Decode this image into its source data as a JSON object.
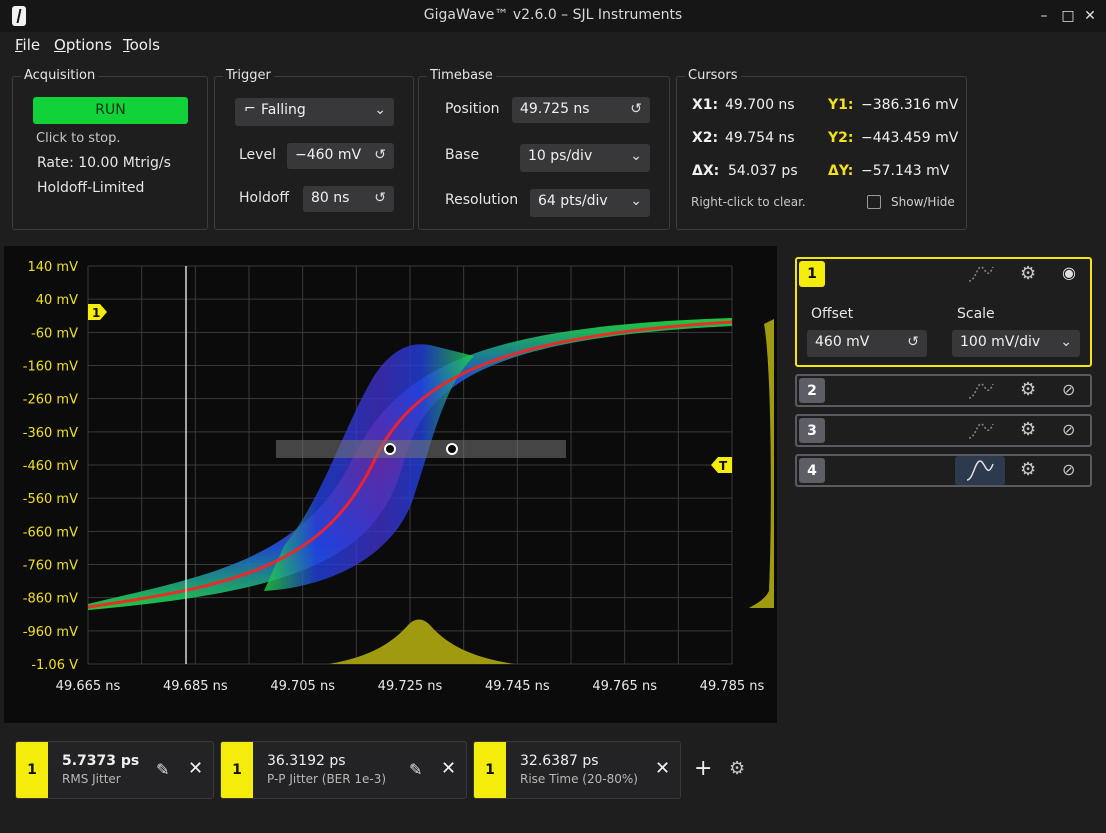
{
  "window": {
    "title": "GigaWave™ v2.6.0 – SJL Instruments",
    "minimize": "–",
    "maximize": "□",
    "close": "✕"
  },
  "menu": [
    {
      "label_u": "F",
      "label_rest": "ile"
    },
    {
      "label_u": "O",
      "label_rest": "ptions"
    },
    {
      "label_u": "T",
      "label_rest": "ools"
    }
  ],
  "acquisition": {
    "title": "Acquisition",
    "run_label": "RUN",
    "hint": "Click to stop.",
    "rate": "Rate: 10.00 Mtrig/s",
    "mode": "Holdoff-Limited"
  },
  "trigger": {
    "title": "Trigger",
    "edge": "Falling",
    "level_label": "Level",
    "level_value": "−460 mV",
    "holdoff_label": "Holdoff",
    "holdoff_value": "80 ns"
  },
  "timebase": {
    "title": "Timebase",
    "position_label": "Position",
    "position_value": "49.725 ns",
    "base_label": "Base",
    "base_value": "10 ps/div",
    "resolution_label": "Resolution",
    "resolution_value": "64 pts/div"
  },
  "cursors": {
    "title": "Cursors",
    "x1_label": "X1:",
    "x1": "49.700 ns",
    "x2_label": "X2:",
    "x2": "49.754 ns",
    "dx_label": "ΔX:",
    "dx": "54.037 ps",
    "y1_label": "Y1:",
    "y1": "−386.316 mV",
    "y2_label": "Y2:",
    "y2": "−443.459 mV",
    "dy_label": "ΔY:",
    "dy": "−57.143 mV",
    "hint": "Right-click to clear.",
    "show_hide": "Show/Hide"
  },
  "plot": {
    "y_ticks": [
      "140 mV",
      "40 mV",
      "-60 mV",
      "-160 mV",
      "-260 mV",
      "-360 mV",
      "-460 mV",
      "-560 mV",
      "-660 mV",
      "-760 mV",
      "-860 mV",
      "-960 mV",
      "-1.06 V"
    ],
    "x_ticks": [
      "49.665 ns",
      "49.685 ns",
      "49.705 ns",
      "49.725 ns",
      "49.745 ns",
      "49.765 ns",
      "49.785 ns"
    ],
    "channel_marker": "1",
    "trigger_marker": "T",
    "colors": {
      "grid": "#3a3a3a",
      "tick_text": "#f0e020",
      "axis_text": "#e8e8e8",
      "histogram": "#a09a10"
    }
  },
  "channels": [
    {
      "num": "1",
      "active": true,
      "offset_label": "Offset",
      "offset_value": "460 mV",
      "scale_label": "Scale",
      "scale_value": "100 mV/div",
      "visible": true
    },
    {
      "num": "2",
      "active": false,
      "visible": false
    },
    {
      "num": "3",
      "active": false,
      "visible": false
    },
    {
      "num": "4",
      "active": false,
      "visible": false
    }
  ],
  "measurements": [
    {
      "channel": "1",
      "value": "5.7373 ps",
      "name": "RMS Jitter",
      "bold": true
    },
    {
      "channel": "1",
      "value": "36.3192 ps",
      "name": "P-P Jitter (BER 1e-3)",
      "bold": false
    },
    {
      "channel": "1",
      "value": "32.6387 ps",
      "name": "Rise Time (20-80%)",
      "bold": false
    }
  ],
  "toolbar": {
    "add": "+"
  }
}
